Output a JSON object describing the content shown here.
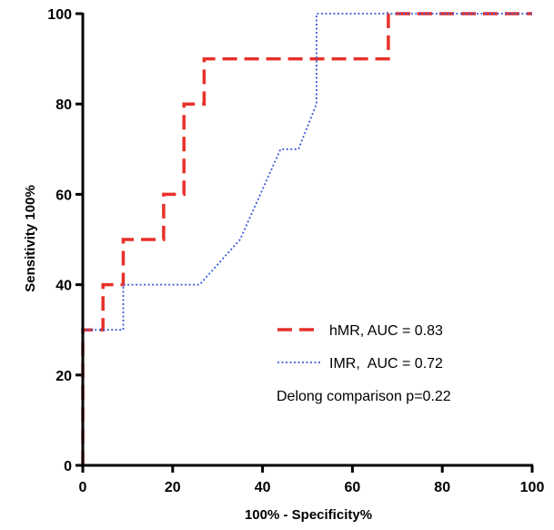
{
  "chart_data": {
    "type": "line",
    "xlabel": "100% - Specificity%",
    "ylabel": "Sensitivity 100%",
    "xlim": [
      0,
      100
    ],
    "ylim": [
      0,
      100
    ],
    "x_ticks": [
      "0",
      "20",
      "40",
      "60",
      "80",
      "100"
    ],
    "y_ticks": [
      "0",
      "20",
      "40",
      "60",
      "80",
      "100"
    ],
    "grid": false,
    "legend_position": "bottom-right",
    "series": [
      {
        "name": "hMR, AUC = 0.83",
        "color": "#e8302a",
        "style": "dashed",
        "x": [
          0,
          0,
          4.5,
          4.5,
          9,
          9,
          18,
          18,
          22.5,
          22.5,
          27,
          27,
          68,
          68,
          100
        ],
        "y": [
          0,
          30,
          30,
          40,
          40,
          50,
          50,
          60,
          60,
          80,
          80,
          90,
          90,
          100,
          100
        ]
      },
      {
        "name": "IMR,  AUC = 0.72",
        "color": "#3b5bdb",
        "style": "dotted",
        "x": [
          0,
          0,
          9,
          9,
          26,
          35,
          44,
          48,
          52,
          52,
          100
        ],
        "y": [
          0,
          30,
          30,
          40,
          40,
          50,
          70,
          70,
          80,
          100,
          100
        ]
      }
    ],
    "annotation": "Delong comparison p=0.22"
  }
}
